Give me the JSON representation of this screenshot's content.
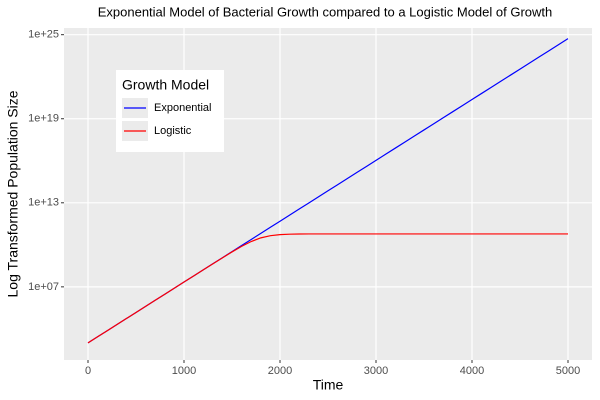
{
  "chart_data": {
    "type": "line",
    "title": "Exponential Model of Bacterial Growth compared to a Logistic Model of Growth",
    "xlabel": "Time",
    "ylabel": "Log Transformed Population Size",
    "legend_title": "Growth Model",
    "legend": "top-left",
    "grid": true,
    "ylog": true,
    "x": [
      0,
      100,
      200,
      300,
      400,
      500,
      600,
      700,
      800,
      900,
      1000,
      1100,
      1200,
      1300,
      1400,
      1500,
      1600,
      1700,
      1800,
      1900,
      2000,
      2100,
      2200,
      2300,
      2400,
      2500,
      2600,
      2700,
      2800,
      2900,
      3000,
      3100,
      3200,
      3300,
      3400,
      3500,
      3600,
      3700,
      3800,
      3900,
      4000,
      4100,
      4200,
      4300,
      4400,
      4500,
      4600,
      4700,
      4800,
      4900,
      5000
    ],
    "series": [
      {
        "name": "Exponential",
        "color": "#0000ff",
        "values": [
          1000.0,
          2718.0,
          7389.0,
          20090.0,
          54600.0,
          148400.0,
          403400.0,
          1097000.0,
          2981000.0,
          8103000.0,
          22030000.0,
          59870000.0,
          162800000.0,
          442400000.0,
          1203000000.0,
          3269000000.0,
          8886000000.0,
          24150000000.0,
          65660000000.0,
          178500000000.0,
          485200000000.0,
          1319000000000.0,
          3585000000000.0,
          9745000000000.0,
          26490000000000.0,
          72000000000000.0,
          195700000000000.0,
          532000000000000.0,
          1446000000000000.0,
          3931000000000000.0,
          1.069e+16,
          2.905e+16,
          7.896e+16,
          2.146e+17,
          5.835e+17,
          1.586e+18,
          4.311e+18,
          1.172e+19,
          3.186e+19,
          8.659e+19,
          2.354e+20,
          6.399e+20,
          1.739e+21,
          4.728e+21,
          1.285e+22,
          3.493e+22,
          9.496e+22,
          2.581e+23,
          7.017e+23,
          1.907e+24,
          5.185e+24
        ]
      },
      {
        "name": "Logistic",
        "color": "#ff0000",
        "values": [
          1000.0,
          2718.0,
          7389.0,
          20090.0,
          54600.0,
          148400.0,
          403400.0,
          1097000.0,
          2981000.0,
          8103000.0,
          22030000.0,
          59870000.0,
          162800000.0,
          439200000.0,
          1179000000.0,
          3100000000.0,
          7740000000.0,
          17220000000.0,
          31350000000.0,
          44910000000.0,
          53400000000.0,
          57390000000.0,
          59010000000.0,
          59630000000.0,
          59860000000.0,
          59950000000.0,
          59980000000.0,
          60000000000.0,
          60000000000.0,
          60000000000.0,
          60000000000.0,
          60000000000.0,
          60000000000.0,
          60000000000.0,
          60000000000.0,
          60000000000.0,
          60000000000.0,
          60000000000.0,
          60000000000.0,
          60000000000.0,
          60000000000.0,
          60000000000.0,
          60000000000.0,
          60000000000.0,
          60000000000.0,
          60000000000.0,
          60000000000.0,
          60000000000.0,
          60000000000.0,
          60000000000.0,
          60000000000.0
        ]
      }
    ],
    "xlim": [
      -250,
      5250
    ],
    "xticks": [
      0,
      1000,
      2000,
      3000,
      4000,
      5000
    ],
    "ylim": [
      60,
      3e+25
    ],
    "yticks": [
      {
        "value": 10000000.0,
        "label": "1e+07"
      },
      {
        "value": 10000000000000.0,
        "label": "1e+13"
      },
      {
        "value": 1e+19,
        "label": "1e+19"
      },
      {
        "value": 1e+25,
        "label": "1e+25"
      }
    ]
  }
}
